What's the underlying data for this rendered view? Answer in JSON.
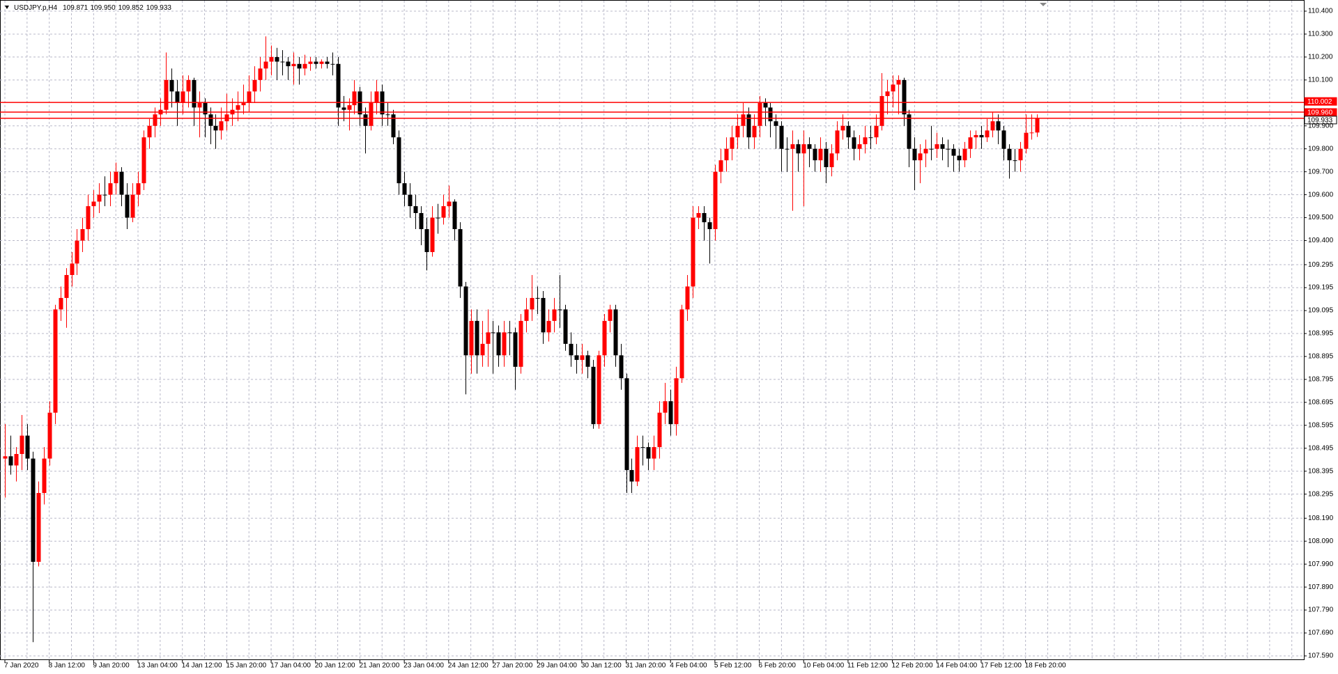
{
  "chart_data": {
    "type": "candlestick",
    "title": "USDJPY.p,H4",
    "ohlc_labels": [
      "109.871",
      "109.950",
      "109.852",
      "109.933"
    ],
    "up_color": "#ff0000",
    "down_color": "#000000",
    "grid": true,
    "ylim": [
      107.59,
      110.4
    ],
    "yticks": [
      {
        "value": 110.4,
        "label": "110.400"
      },
      {
        "value": 110.3,
        "label": "110.300"
      },
      {
        "value": 110.2,
        "label": "110.200"
      },
      {
        "value": 110.1,
        "label": "110.100"
      },
      {
        "value": 109.9,
        "label": "109.900"
      },
      {
        "value": 109.8,
        "label": "109.800"
      },
      {
        "value": 109.7,
        "label": "109.700"
      },
      {
        "value": 109.6,
        "label": "109.600"
      },
      {
        "value": 109.5,
        "label": "109.500"
      },
      {
        "value": 109.4,
        "label": "109.400"
      },
      109.295,
      109.195,
      109.095,
      108.995,
      108.895,
      108.795,
      108.695,
      108.595,
      108.495,
      108.395,
      108.295,
      {
        "value": 108.19,
        "label": "108.190"
      },
      {
        "value": 108.09,
        "label": "108.090"
      },
      {
        "value": 107.99,
        "label": "107.990"
      },
      {
        "value": 107.89,
        "label": "107.890"
      },
      {
        "value": 107.79,
        "label": "107.790"
      },
      {
        "value": 107.69,
        "label": "107.690"
      },
      {
        "value": 107.59,
        "label": "107.590"
      }
    ],
    "levels": [
      {
        "value": 110.002,
        "label": "110.002",
        "color": "#ff0000"
      },
      {
        "value": 109.96,
        "label": "109.960",
        "color": "#ff0000"
      },
      {
        "value": 109.933,
        "label": "109.933",
        "color": "#ff0000"
      }
    ],
    "x_labels": [
      "7 Jan 2020",
      "8 Jan 12:00",
      "9 Jan 20:00",
      "13 Jan 04:00",
      "14 Jan 12:00",
      "15 Jan 20:00",
      "17 Jan 04:00",
      "20 Jan 12:00",
      "21 Jan 20:00",
      "23 Jan 04:00",
      "24 Jan 12:00",
      "27 Jan 20:00",
      "29 Jan 04:00",
      "30 Jan 12:00",
      "31 Jan 20:00",
      "4 Feb 04:00",
      "5 Feb 12:00",
      "6 Feb 20:00",
      "10 Feb 04:00",
      "11 Feb 12:00",
      "12 Feb 20:00",
      "14 Feb 04:00",
      "17 Feb 12:00",
      "18 Feb 20:00"
    ],
    "candles": [
      [
        108.45,
        108.6,
        108.28,
        108.46
      ],
      [
        108.46,
        108.55,
        108.38,
        108.42
      ],
      [
        108.42,
        108.5,
        108.35,
        108.47
      ],
      [
        108.47,
        108.64,
        108.4,
        108.55
      ],
      [
        108.55,
        108.6,
        108.4,
        108.45
      ],
      [
        108.45,
        108.48,
        107.65,
        108.0
      ],
      [
        108.0,
        108.35,
        107.98,
        108.3
      ],
      [
        108.3,
        108.5,
        108.25,
        108.45
      ],
      [
        108.45,
        108.7,
        108.42,
        108.65
      ],
      [
        108.65,
        109.12,
        108.6,
        109.1
      ],
      [
        109.1,
        109.2,
        109.05,
        109.15
      ],
      [
        109.15,
        109.28,
        109.02,
        109.25
      ],
      [
        109.25,
        109.35,
        109.2,
        109.3
      ],
      [
        109.3,
        109.45,
        109.25,
        109.4
      ],
      [
        109.4,
        109.5,
        109.35,
        109.45
      ],
      [
        109.45,
        109.6,
        109.4,
        109.55
      ],
      [
        109.55,
        109.62,
        109.5,
        109.57
      ],
      [
        109.57,
        109.65,
        109.52,
        109.6
      ],
      [
        109.6,
        109.68,
        109.55,
        109.6
      ],
      [
        109.6,
        109.7,
        109.55,
        109.65
      ],
      [
        109.65,
        109.74,
        109.6,
        109.7
      ],
      [
        109.7,
        109.72,
        109.55,
        109.6
      ],
      [
        109.6,
        109.65,
        109.45,
        109.5
      ],
      [
        109.5,
        109.65,
        109.48,
        109.6
      ],
      [
        109.6,
        109.7,
        109.55,
        109.65
      ],
      [
        109.65,
        109.88,
        109.62,
        109.85
      ],
      [
        109.85,
        109.93,
        109.8,
        109.9
      ],
      [
        109.9,
        109.98,
        109.85,
        109.95
      ],
      [
        109.95,
        110.02,
        109.9,
        109.97
      ],
      [
        109.97,
        110.22,
        109.95,
        110.1
      ],
      [
        110.1,
        110.15,
        109.98,
        110.05
      ],
      [
        110.05,
        110.1,
        109.9,
        110.0
      ],
      [
        110.0,
        110.12,
        109.95,
        110.05
      ],
      [
        110.05,
        110.12,
        109.98,
        110.1
      ],
      [
        110.1,
        110.11,
        109.9,
        109.98
      ],
      [
        109.98,
        110.05,
        109.85,
        110.0
      ],
      [
        110.0,
        110.02,
        109.85,
        109.95
      ],
      [
        109.95,
        109.98,
        109.82,
        109.9
      ],
      [
        109.9,
        109.95,
        109.8,
        109.88
      ],
      [
        109.88,
        109.98,
        109.84,
        109.92
      ],
      [
        109.92,
        110.04,
        109.88,
        109.95
      ],
      [
        109.95,
        110.02,
        109.9,
        109.97
      ],
      [
        109.97,
        110.05,
        109.92,
        109.99
      ],
      [
        109.99,
        110.08,
        109.95,
        110.0
      ],
      [
        110.0,
        110.12,
        109.96,
        110.05
      ],
      [
        110.05,
        110.16,
        110.0,
        110.1
      ],
      [
        110.1,
        110.2,
        110.05,
        110.15
      ],
      [
        110.15,
        110.29,
        110.1,
        110.18
      ],
      [
        110.18,
        110.25,
        110.12,
        110.2
      ],
      [
        110.2,
        110.24,
        110.1,
        110.18
      ],
      [
        110.18,
        110.23,
        110.12,
        110.18
      ],
      [
        110.18,
        110.2,
        110.1,
        110.16
      ],
      [
        110.16,
        110.22,
        110.08,
        110.17
      ],
      [
        110.17,
        110.2,
        110.08,
        110.15
      ],
      [
        110.15,
        110.21,
        110.12,
        110.17
      ],
      [
        110.17,
        110.2,
        110.14,
        110.18
      ],
      [
        110.18,
        110.2,
        110.15,
        110.17
      ],
      [
        110.17,
        110.19,
        110.15,
        110.18
      ],
      [
        110.18,
        110.2,
        110.15,
        110.17
      ],
      [
        110.17,
        110.22,
        110.12,
        110.17
      ],
      [
        110.17,
        110.2,
        109.9,
        109.98
      ],
      [
        109.98,
        110.03,
        109.92,
        109.97
      ],
      [
        109.97,
        110.02,
        109.88,
        109.99
      ],
      [
        109.99,
        110.1,
        109.95,
        110.05
      ],
      [
        110.05,
        110.07,
        109.9,
        109.95
      ],
      [
        109.95,
        109.98,
        109.78,
        109.9
      ],
      [
        109.9,
        110.05,
        109.88,
        110.0
      ],
      [
        110.0,
        110.1,
        109.95,
        110.05
      ],
      [
        110.05,
        110.08,
        109.9,
        109.95
      ],
      [
        109.95,
        110.0,
        109.9,
        109.95
      ],
      [
        109.95,
        109.97,
        109.82,
        109.85
      ],
      [
        109.85,
        109.88,
        109.6,
        109.65
      ],
      [
        109.65,
        109.7,
        109.55,
        109.6
      ],
      [
        109.6,
        109.65,
        109.5,
        109.55
      ],
      [
        109.55,
        109.6,
        109.45,
        109.52
      ],
      [
        109.52,
        109.55,
        109.38,
        109.45
      ],
      [
        109.45,
        109.5,
        109.27,
        109.35
      ],
      [
        109.35,
        109.55,
        109.33,
        109.5
      ],
      [
        109.5,
        109.56,
        109.43,
        109.5
      ],
      [
        109.5,
        109.6,
        109.47,
        109.55
      ],
      [
        109.55,
        109.64,
        109.5,
        109.57
      ],
      [
        109.57,
        109.58,
        109.4,
        109.45
      ],
      [
        109.45,
        109.48,
        109.15,
        109.2
      ],
      [
        109.2,
        109.22,
        108.73,
        108.9
      ],
      [
        108.9,
        109.1,
        108.82,
        109.05
      ],
      [
        109.05,
        109.1,
        108.82,
        108.9
      ],
      [
        108.9,
        109.05,
        108.85,
        108.95
      ],
      [
        108.95,
        109.1,
        108.85,
        109.0
      ],
      [
        109.0,
        109.05,
        108.82,
        109.0
      ],
      [
        109.0,
        109.03,
        108.85,
        108.9
      ],
      [
        108.9,
        109.05,
        108.85,
        109.0
      ],
      [
        109.0,
        109.05,
        108.9,
        109.0
      ],
      [
        109.0,
        109.02,
        108.75,
        108.85
      ],
      [
        108.85,
        109.08,
        108.82,
        109.05
      ],
      [
        109.05,
        109.15,
        109.0,
        109.1
      ],
      [
        109.1,
        109.25,
        109.05,
        109.15
      ],
      [
        109.15,
        109.2,
        109.08,
        109.15
      ],
      [
        109.15,
        109.18,
        108.95,
        109.0
      ],
      [
        109.0,
        109.1,
        108.96,
        109.05
      ],
      [
        109.05,
        109.15,
        109.0,
        109.1
      ],
      [
        109.1,
        109.25,
        109.02,
        109.1
      ],
      [
        109.1,
        109.12,
        108.92,
        108.95
      ],
      [
        108.95,
        109.0,
        108.85,
        108.9
      ],
      [
        108.9,
        108.95,
        108.82,
        108.88
      ],
      [
        108.88,
        108.95,
        108.82,
        108.9
      ],
      [
        108.9,
        108.92,
        108.8,
        108.85
      ],
      [
        108.85,
        108.88,
        108.58,
        108.6
      ],
      [
        108.6,
        108.92,
        108.58,
        108.9
      ],
      [
        108.9,
        109.08,
        108.85,
        109.05
      ],
      [
        109.05,
        109.12,
        109.0,
        109.1
      ],
      [
        109.1,
        109.12,
        108.85,
        108.9
      ],
      [
        108.9,
        108.95,
        108.75,
        108.8
      ],
      [
        108.8,
        108.82,
        108.3,
        108.4
      ],
      [
        108.4,
        108.45,
        108.3,
        108.35
      ],
      [
        108.35,
        108.55,
        108.33,
        108.5
      ],
      [
        108.5,
        108.55,
        108.42,
        108.5
      ],
      [
        108.5,
        108.52,
        108.4,
        108.45
      ],
      [
        108.45,
        108.55,
        108.4,
        108.5
      ],
      [
        108.5,
        108.7,
        108.45,
        108.65
      ],
      [
        108.65,
        108.78,
        108.6,
        108.7
      ],
      [
        108.7,
        108.75,
        108.55,
        108.6
      ],
      [
        108.6,
        108.85,
        108.55,
        108.8
      ],
      [
        108.8,
        109.12,
        108.78,
        109.1
      ],
      [
        109.1,
        109.25,
        109.05,
        109.2
      ],
      [
        109.2,
        109.55,
        109.15,
        109.5
      ],
      [
        109.5,
        109.55,
        109.45,
        109.52
      ],
      [
        109.52,
        109.55,
        109.4,
        109.48
      ],
      [
        109.48,
        109.5,
        109.3,
        109.45
      ],
      [
        109.45,
        109.73,
        109.4,
        109.7
      ],
      [
        109.7,
        109.8,
        109.65,
        109.75
      ],
      [
        109.75,
        109.85,
        109.7,
        109.8
      ],
      [
        109.8,
        109.9,
        109.75,
        109.85
      ],
      [
        109.85,
        109.95,
        109.8,
        109.9
      ],
      [
        109.9,
        110.0,
        109.85,
        109.95
      ],
      [
        109.95,
        109.98,
        109.8,
        109.85
      ],
      [
        109.85,
        109.95,
        109.8,
        109.9
      ],
      [
        109.9,
        110.03,
        109.85,
        110.0
      ],
      [
        110.0,
        110.02,
        109.9,
        109.98
      ],
      [
        109.98,
        110.0,
        109.85,
        109.92
      ],
      [
        109.92,
        109.95,
        109.8,
        109.9
      ],
      [
        109.9,
        109.92,
        109.7,
        109.8
      ],
      [
        109.8,
        109.85,
        109.7,
        109.8
      ],
      [
        109.8,
        109.88,
        109.53,
        109.82
      ],
      [
        109.82,
        109.84,
        109.7,
        109.78
      ],
      [
        109.78,
        109.88,
        109.55,
        109.82
      ],
      [
        109.82,
        109.85,
        109.72,
        109.8
      ],
      [
        109.8,
        109.82,
        109.7,
        109.75
      ],
      [
        109.75,
        109.85,
        109.7,
        109.8
      ],
      [
        109.8,
        109.83,
        109.65,
        109.72
      ],
      [
        109.72,
        109.82,
        109.68,
        109.78
      ],
      [
        109.78,
        109.92,
        109.75,
        109.88
      ],
      [
        109.88,
        109.95,
        109.84,
        109.9
      ],
      [
        109.9,
        109.92,
        109.8,
        109.85
      ],
      [
        109.85,
        109.88,
        109.75,
        109.8
      ],
      [
        109.8,
        109.86,
        109.75,
        109.82
      ],
      [
        109.82,
        109.9,
        109.78,
        109.85
      ],
      [
        109.85,
        109.9,
        109.8,
        109.85
      ],
      [
        109.85,
        109.95,
        109.82,
        109.9
      ],
      [
        109.9,
        110.13,
        109.88,
        110.03
      ],
      [
        110.03,
        110.1,
        109.95,
        110.05
      ],
      [
        110.05,
        110.12,
        109.98,
        110.08
      ],
      [
        110.08,
        110.12,
        109.95,
        110.1
      ],
      [
        110.1,
        110.11,
        109.9,
        109.95
      ],
      [
        109.95,
        109.97,
        109.72,
        109.8
      ],
      [
        109.8,
        109.85,
        109.62,
        109.75
      ],
      [
        109.75,
        109.82,
        109.65,
        109.78
      ],
      [
        109.78,
        109.84,
        109.72,
        109.8
      ],
      [
        109.8,
        109.9,
        109.75,
        109.8
      ],
      [
        109.8,
        109.87,
        109.76,
        109.82
      ],
      [
        109.82,
        109.85,
        109.75,
        109.8
      ],
      [
        109.8,
        109.84,
        109.72,
        109.8
      ],
      [
        109.8,
        109.82,
        109.7,
        109.77
      ],
      [
        109.77,
        109.8,
        109.7,
        109.75
      ],
      [
        109.75,
        109.83,
        109.72,
        109.8
      ],
      [
        109.8,
        109.88,
        109.76,
        109.85
      ],
      [
        109.85,
        109.88,
        109.8,
        109.86
      ],
      [
        109.86,
        109.9,
        109.8,
        109.85
      ],
      [
        109.85,
        109.93,
        109.83,
        109.88
      ],
      [
        109.88,
        109.96,
        109.85,
        109.92
      ],
      [
        109.92,
        109.95,
        109.82,
        109.88
      ],
      [
        109.88,
        109.9,
        109.75,
        109.8
      ],
      [
        109.8,
        109.82,
        109.67,
        109.75
      ],
      [
        109.75,
        109.8,
        109.7,
        109.75
      ],
      [
        109.75,
        109.83,
        109.7,
        109.8
      ],
      [
        109.8,
        109.95,
        109.78,
        109.87
      ],
      [
        109.87,
        109.95,
        109.84,
        109.871
      ],
      [
        109.871,
        109.95,
        109.852,
        109.933
      ]
    ]
  }
}
